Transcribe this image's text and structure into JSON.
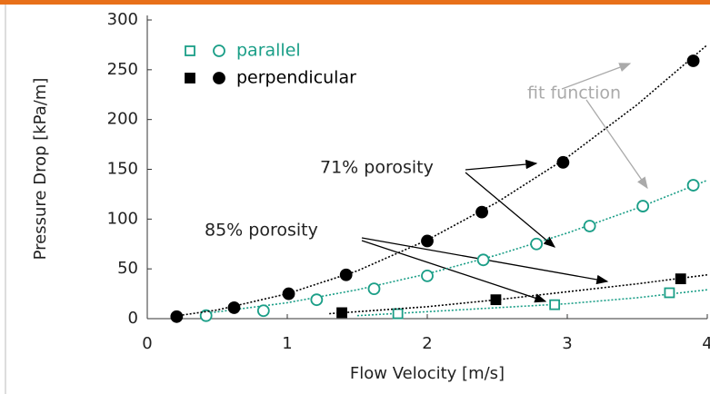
{
  "chart_data": {
    "type": "scatter",
    "xlabel": "Flow Velocity [m/s]",
    "ylabel": "Pressure Drop [kPa/m]",
    "xlim": [
      0,
      4
    ],
    "xticks": [
      0,
      1,
      2,
      3,
      4
    ],
    "ylim": [
      0,
      300
    ],
    "yticks": [
      0,
      50,
      100,
      150,
      200,
      250,
      300
    ],
    "annotations": [
      "fit function",
      "71% porosity",
      "85% porosity"
    ],
    "series": [
      {
        "name": "parallel",
        "color": "#1a9e87",
        "filled": false,
        "squares": {
          "x": [
            1.79,
            2.91,
            3.73
          ],
          "values": [
            5,
            14,
            26
          ]
        },
        "circles": {
          "x": [
            0.42,
            0.83,
            1.21,
            1.62,
            2.0,
            2.4,
            2.78,
            3.16,
            3.54,
            3.9
          ],
          "values": [
            3,
            8,
            19,
            30,
            43,
            59,
            75,
            93,
            113,
            134
          ]
        },
        "square_fit": {
          "x": [
            1.5,
            2,
            2.5,
            3,
            3.5,
            4
          ],
          "values": [
            3,
            7,
            11,
            15,
            21,
            29
          ]
        },
        "circle_fit": {
          "x": [
            0.4,
            1,
            1.5,
            2,
            2.5,
            3,
            3.5,
            4
          ],
          "values": [
            5,
            16,
            29,
            45,
            64,
            86,
            111,
            139
          ]
        }
      },
      {
        "name": "perpendicular",
        "color": "#000000",
        "filled": true,
        "squares": {
          "x": [
            1.39,
            2.49,
            3.81
          ],
          "values": [
            6,
            19,
            40
          ]
        },
        "circles": {
          "x": [
            0.21,
            0.62,
            1.01,
            1.42,
            2.0,
            2.39,
            2.97,
            3.9
          ],
          "values": [
            2,
            11,
            25,
            44,
            78,
            107,
            157,
            259
          ]
        },
        "square_fit": {
          "x": [
            1.3,
            2,
            2.5,
            3,
            3.5,
            4
          ],
          "values": [
            5,
            12,
            19,
            27,
            35,
            44
          ]
        },
        "circle_fit": {
          "x": [
            0.2,
            0.5,
            1,
            1.5,
            2,
            2.5,
            3,
            3.5,
            4
          ],
          "values": [
            2.6,
            8.7,
            25,
            48,
            79,
            117,
            162,
            215,
            275
          ]
        }
      }
    ]
  }
}
